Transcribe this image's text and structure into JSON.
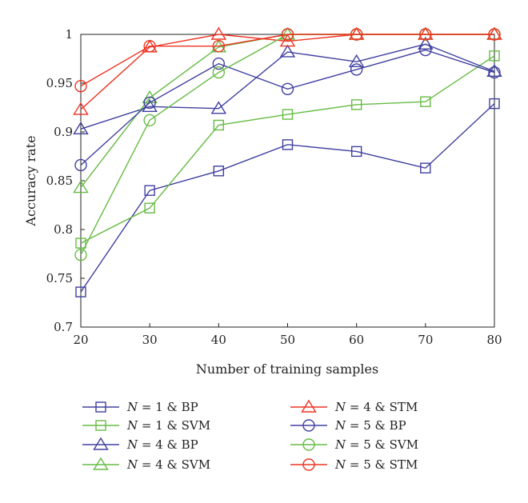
{
  "chart_data": {
    "type": "line",
    "xlabel": "Number of training samples",
    "ylabel": "Accuracy rate",
    "xlim": [
      20,
      80
    ],
    "ylim": [
      0.7,
      1.0
    ],
    "x_ticks": [
      20,
      30,
      40,
      50,
      60,
      70,
      80
    ],
    "y_ticks": [
      0.7,
      0.75,
      0.8,
      0.85,
      0.9,
      0.95,
      1.0
    ],
    "y_tick_labels": [
      "0.7",
      "0.75",
      "0.8",
      "0.85",
      "0.9",
      "0.95",
      "1"
    ],
    "x": [
      20,
      30,
      40,
      50,
      60,
      70,
      80
    ],
    "grid": false,
    "legend_position": "bottom",
    "series": [
      {
        "name": "N = 1 & BP",
        "legend_var": "N",
        "legend_rest": " = 1 & BP",
        "color": "#4040a0",
        "marker": "square",
        "values": [
          0.736,
          0.84,
          0.86,
          0.887,
          0.88,
          0.863,
          0.929
        ]
      },
      {
        "name": "N = 1 & SVM",
        "legend_var": "N",
        "legend_rest": " = 1 & SVM",
        "color": "#66bb44",
        "marker": "square",
        "values": [
          0.786,
          0.822,
          0.907,
          0.918,
          0.928,
          0.931,
          0.978
        ]
      },
      {
        "name": "N = 4 & BP",
        "legend_var": "N",
        "legend_rest": " = 4 & BP",
        "color": "#4040a0",
        "marker": "triangle",
        "values": [
          0.903,
          0.926,
          0.924,
          0.982,
          0.972,
          0.99,
          0.962
        ]
      },
      {
        "name": "N = 4 & SVM",
        "legend_var": "N",
        "legend_rest": " = 4 & SVM",
        "color": "#66bb44",
        "marker": "triangle",
        "values": [
          0.843,
          0.935,
          0.987,
          1.0,
          1.0,
          1.0,
          1.0
        ]
      },
      {
        "name": "N = 4 & STM",
        "legend_var": "N",
        "legend_rest": " = 4 & STM",
        "color": "#ee3322",
        "marker": "triangle",
        "values": [
          0.923,
          0.987,
          1.0,
          0.993,
          1.0,
          1.0,
          1.0
        ]
      },
      {
        "name": "N = 5 & BP",
        "legend_var": "N",
        "legend_rest": " = 5 & BP",
        "color": "#4040a0",
        "marker": "circle",
        "values": [
          0.866,
          0.93,
          0.97,
          0.944,
          0.964,
          0.984,
          0.961
        ]
      },
      {
        "name": "N = 5 & SVM",
        "legend_var": "N",
        "legend_rest": " = 5 & SVM",
        "color": "#66bb44",
        "marker": "circle",
        "values": [
          0.774,
          0.912,
          0.961,
          1.0,
          1.0,
          1.0,
          1.0
        ]
      },
      {
        "name": "N = 5 & STM",
        "legend_var": "N",
        "legend_rest": " = 5 & STM",
        "color": "#ee3322",
        "marker": "circle",
        "values": [
          0.947,
          0.988,
          0.988,
          1.0,
          1.0,
          1.0,
          1.0
        ]
      }
    ]
  }
}
